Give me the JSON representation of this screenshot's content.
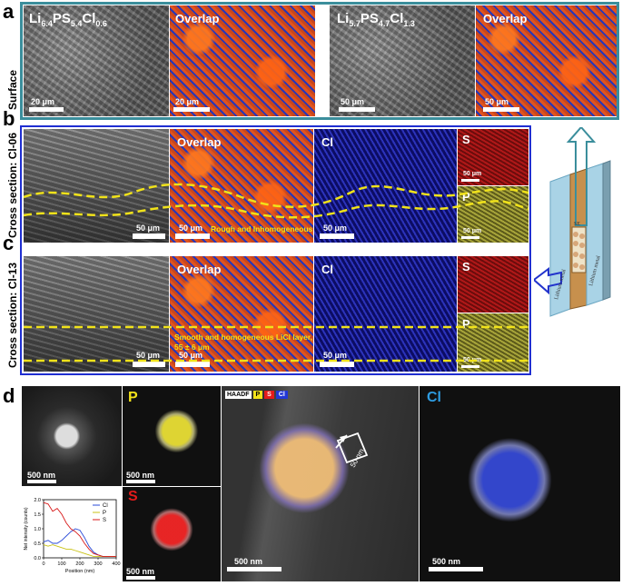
{
  "panel_a": {
    "letter": "a",
    "row_label": "Surface",
    "composition_1": {
      "base": "Li",
      "sub1": "6.4",
      "mid": "PS",
      "sub2": "5.4",
      "end": "Cl",
      "sub3": "0.6"
    },
    "composition_2": {
      "base": "Li",
      "sub1": "5.7",
      "mid": "PS",
      "sub2": "4.7",
      "end": "Cl",
      "sub3": "1.3"
    },
    "overlap_label": "Overlap",
    "scale_1": "20 μm",
    "scale_2": "20 μm",
    "scale_3": "50 μm",
    "scale_4": "50 μm"
  },
  "panel_b": {
    "letter": "b",
    "row_label": "Cross section: Cl-06",
    "overlap_label": "Overlap",
    "cl_label": "Cl",
    "s_label": "S",
    "p_label": "P",
    "annotation": "Rough and Inhomogeneous",
    "scale": "50 μm"
  },
  "panel_c": {
    "letter": "c",
    "row_label": "Cross section: Cl-13",
    "overlap_label": "Overlap",
    "cl_label": "Cl",
    "s_label": "S",
    "p_label": "P",
    "annotation_line1": "Smooth and homogeneous LiCl layer,",
    "annotation_line2": "55 ± 6 μm",
    "scale": "50 μm"
  },
  "schematic": {
    "label_lithium_1": "Lithium metal",
    "label_lithium_2": "Lithium metal",
    "label_se": "SE"
  },
  "panel_d": {
    "letter": "d",
    "p_label": "P",
    "s_label": "S",
    "cl_label": "Cl",
    "haadf": "HAADF",
    "legend_p": "P",
    "legend_s": "S",
    "legend_cl": "Cl",
    "scale": "500 nm",
    "scan_length": "50 nm",
    "colors": {
      "P": "#f2e21a",
      "S": "#e31b1b",
      "Cl": "#2e9be0"
    }
  },
  "chart_data": {
    "type": "line",
    "xlabel": "Position (nm)",
    "ylabel": "Net intensity (counts)",
    "xlim": [
      0,
      400
    ],
    "ylim": [
      0,
      2.0
    ],
    "xticks": [
      "0",
      "100",
      "200",
      "300",
      "400"
    ],
    "yticks": [
      "0.0",
      "0.5",
      "1.0",
      "1.5",
      "2.0"
    ],
    "legend": "top-right",
    "series": [
      {
        "name": "Cl",
        "color": "#2a4bd8",
        "x": [
          0,
          25,
          50,
          75,
          100,
          125,
          150,
          175,
          200,
          225,
          250,
          275,
          300,
          325,
          350,
          375,
          400
        ],
        "y": [
          0.55,
          0.6,
          0.5,
          0.5,
          0.6,
          0.75,
          0.9,
          1.0,
          0.95,
          0.7,
          0.4,
          0.2,
          0.1,
          0.05,
          0.05,
          0.05,
          0.05
        ]
      },
      {
        "name": "P",
        "color": "#c9c214",
        "x": [
          0,
          25,
          50,
          75,
          100,
          125,
          150,
          175,
          200,
          225,
          250,
          275,
          300,
          325,
          350,
          375,
          400
        ],
        "y": [
          0.45,
          0.4,
          0.45,
          0.4,
          0.35,
          0.3,
          0.3,
          0.25,
          0.2,
          0.15,
          0.1,
          0.05,
          0.05,
          0.05,
          0.05,
          0.05,
          0.05
        ]
      },
      {
        "name": "S",
        "color": "#d81a1a",
        "x": [
          0,
          25,
          50,
          75,
          100,
          125,
          150,
          175,
          200,
          225,
          250,
          275,
          300,
          325,
          350,
          375,
          400
        ],
        "y": [
          1.9,
          1.85,
          1.6,
          1.7,
          1.5,
          1.2,
          1.0,
          0.9,
          0.75,
          0.5,
          0.3,
          0.15,
          0.1,
          0.05,
          0.05,
          0.05,
          0.05
        ]
      }
    ]
  }
}
